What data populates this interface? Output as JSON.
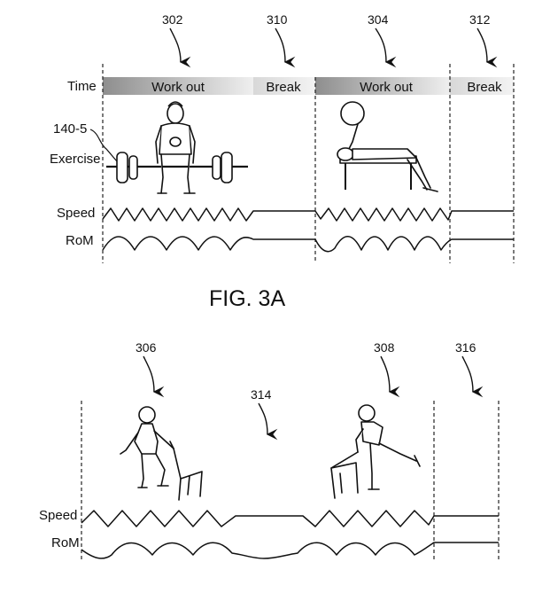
{
  "fig3a": {
    "refs": {
      "r302": "302",
      "r310": "310",
      "r304": "304",
      "r312": "312",
      "r140": "140-5"
    },
    "row_labels": {
      "time": "Time",
      "exercise": "Exercise",
      "speed": "Speed",
      "rom": "RoM"
    },
    "bar_labels": {
      "workout1": "Work out",
      "break1": "Break",
      "workout2": "Work out",
      "break2": "Break"
    },
    "caption": "FIG. 3A"
  },
  "fig3b": {
    "refs": {
      "r306": "306",
      "r314": "314",
      "r308": "308",
      "r316": "316"
    },
    "row_labels": {
      "speed": "Speed",
      "rom": "RoM"
    }
  },
  "colors": {
    "ink": "#111111",
    "bar_dark": "#9a9a9a",
    "bar_light": "#eeeeee"
  },
  "icons": [
    "deadlift-figure-icon",
    "bench-press-figure-icon",
    "chair-squat-figure-icon",
    "chair-leg-raise-figure-icon"
  ]
}
